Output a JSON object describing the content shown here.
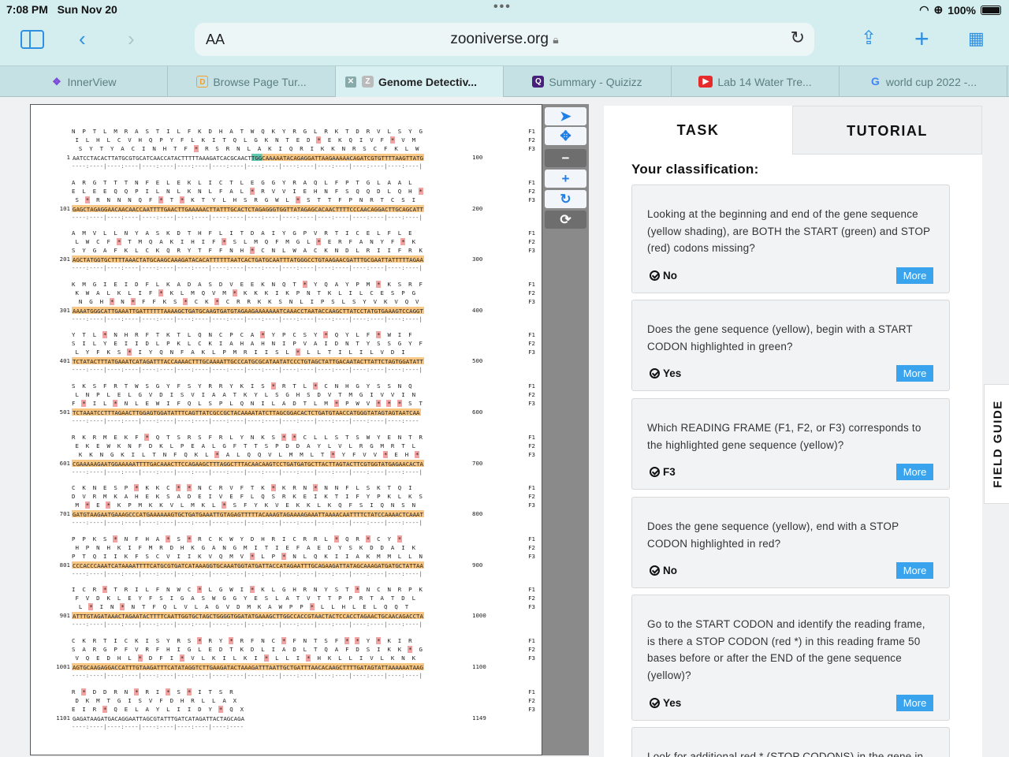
{
  "status_bar": {
    "time": "7:08 PM",
    "date": "Sun Nov 20",
    "battery": "100%"
  },
  "browser": {
    "text_size": "AA",
    "url": "zooniverse.org",
    "tabs": [
      {
        "label": "InnerView",
        "active": false
      },
      {
        "label": "Browse Page Tur...",
        "active": false
      },
      {
        "label": "Genome Detectiv...",
        "active": true
      },
      {
        "label": "Summary - Quizizz",
        "active": false
      },
      {
        "label": "Lab 14 Water Tre...",
        "active": false
      },
      {
        "label": "world cup 2022 -...",
        "active": false
      }
    ]
  },
  "viewer": {
    "blocks": [
      {
        "f1": "N  P  T  L  M  R  A  S  T  I  L  F  K  D  H  A  T  W  Q  K  Y  R  G  L  R  K  T  D  R  V  L  S  Y  G",
        "f2": " I  L  H  L  C  V  H  Q  P  Y  F  L  K  I  T  Q  L  G  K  N  T  E  D  *  E  K  Q  I  V  F  *  V  M",
        "f3": "  S  Y  T  Y  A  C  I  N  H  T  F  *  R  S  R  N  L  A  K  I  Q  R  I  K  K  N  R  S  C  F  K  L  W",
        "num": "1",
        "bases": "AATCCTACACTTATGCGTGCATCAACCATACTTTTTAAAGATCACGCAACTTGGCAAAAATACAGAGGATTAAGAAAAACAGATCGTGTTTTAAGTTATG",
        "end": "100"
      },
      {
        "f1": "A  R  G  T  T  T  N  F  E  L  E  K  L  I  C  T  L  E  G  G  Y  R  A  Q  L  F  P  T  G  L  A  A  L",
        "f2": "E  L  E  E  Q  Q  P  I  L  N  L  K  N  L  F  A  L  *  R  V  V  I  E  H  N  F  S  Q  Q  D  L  Q  H  *",
        "f3": " S  *  R  N  N  N  Q  F  *  T  *  K  T  Y  L  H  S  R  G  W  L  *  S  T  T  F  P  N  R  T  C  S  I",
        "num": "101",
        "bases": "GAGCTAGAGGAACAACAACCAATTTTGAACTTGAAAAACTTATTTGCACTCTAGAGGGTGGTTATAGAGCACAACTTTTCCCAACAGGACTTGCAGCATT",
        "end": "200"
      },
      {
        "f1": "A  M  V  L  L  N  Y  A  S  K  D  T  H  F  L  I  T  D  A  I  Y  G  P  V  R  T  I  C  E  L  F  L  E",
        "f2": " L  W  C  F  *  T  M  Q  A  K  I  H  I  F  *  S  L  M  Q  F  M  G  L  *  E  R  F  A  N  Y  F  *  K",
        "f3": "S  Y  G  A  F  K  L  C  K  Q  R  Y  T  F  F  N  H  *  C  N  L  W  A  C  K  N  D  L  R  I  I  F  R  K",
        "num": "201",
        "bases": "AGCTATGGTGCTTTTAAACTATGCAAGCAAAGATACACATTTTTTAATCACTGATGCAATTTATGGGCCTGTAAGAACGATTTGCGAATTATTTTTAGAA",
        "end": "300"
      },
      {
        "f1": "K  M  G  I  E  I  D  F  L  K  A  D  A  S  D  V  E  E  K  N  Q  T  *  Y  Q  A  Y  P  M  *  K  S  R  F",
        "f2": " K  W  A  L  K  L  I  F  *  K  L  M  Q  V  M  *  K  K  K  I  K  P  N  T  K  L  I  L  C  E  S  P  G",
        "f3": "  N  G  H  *  N  *  F  F  K  S  *  C  K  *  C  R  R  K  K  S  N  L  I  P  S  L  S  Y  V  K  V  Q  V",
        "num": "301",
        "bases": "AAAATGGGCATTGAAATTGATTTTTTAAAAGCTGATGCAAGTGATGTAGAAGAAAAAAATCAAACCTAATACCAAGCTTATCCTATGTGAAAGTCCAGGT",
        "end": "400"
      },
      {
        "f1": "Y  T  L  *  N  H  R  F  T  K  T  L  Q  N  C  P  C  A  *  Y  P  C  S  Y  *  Q  Y  L  F  *  W  I  F",
        "f2": "S  I  L  Y  E  I  I  D  L  P  K  L  C  K  I  A  H  A  H  N  I  P  V  A  I  D  N  T  Y  S  S  G  Y  F",
        "f3": " L  Y  F  K  S  *  I  Y  Q  N  F  A  K  L  P  M  R  I  I  S  L  *  L  L  T  I  L  I  L  V  D  I",
        "num": "401",
        "bases": "TCTATACTTTATGAAATCATAGATTTACCAAAACTTTGCAAAATTGCCCATGCGCATAATATCCCTGTAGCTATTGACAATACTTATTCTAGTGGATATT",
        "end": "500"
      },
      {
        "f1": "S  K  S  F  R  T  W  S  G  Y  F  S  Y  R  R  Y  K  I  S  *  R  T  L  *  C  N  H  G  Y  S  S  N  Q",
        "f2": " L  N  P  L  E  L  G  V  D  I  S  V  I  A  A  T  K  Y  L  S  G  H  S  D  V  T  M  G  I  V  V  I  N",
        "f3": "F  *  I  L  *  N  L  E  W  I  F  Q  L  S  P  L  Q  N  I  L  A  D  T  L  M  *  P  W  V  *  *  *  S  T",
        "num": "501",
        "bases": "TCTAAATCCTTTAGAACTTGGAGTGGATATTTCAGTTATCGCCGCTACAAAATATCTTAGCGGACACTCTGATGTAACCATGGGTATAGTAGTAATCAA",
        "end": "600"
      },
      {
        "f1": "R  K  R  M  E  K  F  *  Q  T  S  R  S  F  R  L  Y  N  K  S  *  *  C  L  L  S  T  S  W  Y  E  N  T  R",
        "f2": " E  K  E  W  K  N  F  D  K  L  P  E  A  L  G  F  T  T  S  P  D  D  A  Y  L  V  L  R  G  M  R  T  L",
        "f3": "  K  K  N  G  K  I  L  T  N  F  Q  K  L  *  A  L  Q  Q  V  L  M  M  L  T  *  Y  F  V  V  *  E  H  *",
        "num": "601",
        "bases": "CGAAAAAGAATGGAAAAATTTTGACAAACTTCCAGAAGCTTTAGGCTTTACAACAAGTCCTGATGATGCTTACTTAGTACTTCGTGGTATGAGAACACTA",
        "end": "700"
      },
      {
        "f1": "C  K  N  E  S  P  *  K  K  C  *  *  N  C  R  V  F  T  K  *  K  R  N  *  N  N  F  L  S  K  T  Q  I",
        "f2": "D  V  R  M  K  A  H  E  K  S  A  D  E  I  V  E  F  L  Q  S  R  K  E  I  K  T  I  F  Y  P  K  L  K  S",
        "f3": " M  *  E  *  K  P  M  K  K  V  L  M  K  L  *  S  F  Y  K  V  E  K  K  L  K  Q  F  S  I  Q  N  S  N",
        "num": "701",
        "bases": "GATGTAAGAATGAAAGCCCATGAAAAAAGTGCTGATGAAATTGTAGAGTTTTTACAAAGTAGAAAAGAAATTAAAACAATTTTCTATCCAAAACTCAAAT",
        "end": "800"
      },
      {
        "f1": "P  P  K  S  *  N  F  H  A  *  S  *  R  C  K  W  Y  D  H  R  I  C  R  R  L  *  Q  R  *  C  Y  *",
        "f2": " H  P  N  H  K  I  F  M  R  D  H  K  G  A  N  G  M  I  T  I  E  F  A  E  D  Y  S  K  D  D  A  I  K",
        "f3": "P  T  Q  I  I  K  F  S  C  V  I  I  K  V  Q  M  V  *  L  P  *  N  L  Q  K  I  I  A  K  M  M  L  L  N",
        "num": "801",
        "bases": "CCCACCCAAATCATAAAATTTTCATGCGTGATCATAAAGGTGCAAATGGTATGATTACCATAGAATTTGCAGAAGATTATAGCAAAGATGATGCTATTAA",
        "end": "900"
      },
      {
        "f1": "I  C  R  *  T  R  I  L  F  N  W  C  *  L  G  W  I  *  K  L  G  H  R  N  Y  S  T  *  N  C  N  R  P  K",
        "f2": " F  V  D  K  L  E  Y  F  S  I  G  A  S  W  G  G  Y  E  S  L  A  T  V  T  T  P  P  R  T  A  T  D  L",
        "f3": "  L  *  I  N  *  N  T  F  Q  L  V  L  A  G  V  D  M  K  A  W  P  P  *  L  L  H  L  E  L  Q  Q  T",
        "num": "901",
        "bases": "ATTTGTAGATAAACTAGAATACTTTTCAATTGGTGCTAGCTGGGGTGGATATGAAAGCTTGGCCACCGTAACTACTCCACCTAGAACTGCAACAGACCTA",
        "end": "1000"
      },
      {
        "f1": "C  K  R  T  I  C  K  I  S  Y  R  S  *  R  Y  *  R  F  N  C  *  F  N  T  S  F  *  *  Y  *  K  I  R",
        "f2": "S  A  R  G  P  F  V  R  F  H  I  G  L  E  D  T  K  D  L  I  A  D  L  T  Q  A  F  D  S  I  K  K  *  G",
        "f3": " V  Q  E  D  H  L  *  D  F  I  *  V  L  K  I  L  K  I  *  L  L  I  *  H  K  L  L  I  V  L  K  N  K",
        "num": "1001",
        "bases": "AGTGCAAGAGGACCATTTGTAAGATTTCATATAGGTCTTGAAGATACTAAAGATTTAATTGCTGATTTAACACAAGCTTTTGATAGTATTAAAAAATAAG",
        "end": "1100"
      },
      {
        "f1": "R  *  D  D  R  N  *  R  I  *  S  *  I  T  S  R",
        "f2": " D  K  M  T  G  I  S  V  F  D  H  R  L  L  A  X",
        "f3": "E  I  R  *  Q  E  L  A  Y  L  I  I  D  Y  *  Q  X",
        "num": "1101",
        "bases": "GAGATAAGATGACAGGAATTAGCGTATTTGATCATAGATTACTAGCAGA",
        "end": "1149"
      }
    ],
    "ruler": "----:----|----:----|----:----|----:----|----:----|----:----|----:----|----:----|----:----|----:----|",
    "frame_labels": [
      "F1",
      "F2",
      "F3"
    ]
  },
  "tools": [
    "pointer-tool",
    "move-tool",
    "zoom-out",
    "zoom-in",
    "rotate",
    "reset"
  ],
  "panel": {
    "tabs": [
      "TASK",
      "TUTORIAL"
    ],
    "heading": "Your classification:",
    "questions": [
      {
        "question": "Looking at the beginning and end of the gene sequence (yellow shading), are BOTH the START (green) and STOP (red) codons missing?",
        "answer": "No",
        "more": "More"
      },
      {
        "question": "Does the gene sequence (yellow), begin with a START CODON highlighted in green?",
        "answer": "Yes",
        "more": "More"
      },
      {
        "question": "Which READING FRAME (F1, F2, or F3) corresponds to the highlighted gene sequence (yellow)?",
        "answer": "F3",
        "more": "More"
      },
      {
        "question": "Does the gene sequence (yellow), end with a STOP CODON highlighted in red?",
        "answer": "No",
        "more": "More"
      },
      {
        "question": "Go to the START CODON and identify the reading frame, is there a STOP CODON (red *) in this reading frame 50 bases before or after the END of the gene sequence (yellow)?",
        "answer": "Yes",
        "more": "More"
      },
      {
        "question": "Look for additional red * (STOP CODONS) in the gene in",
        "answer": "",
        "more": ""
      }
    ],
    "field_guide": "FIELD GUIDE"
  },
  "colors": {
    "gene_highlight": "#f9c784",
    "stop_highlight": "#f2a2a0",
    "start_highlight": "#5fc9b0",
    "more_button": "#3aa3ee",
    "browser_accent": "#2f8fe0"
  }
}
